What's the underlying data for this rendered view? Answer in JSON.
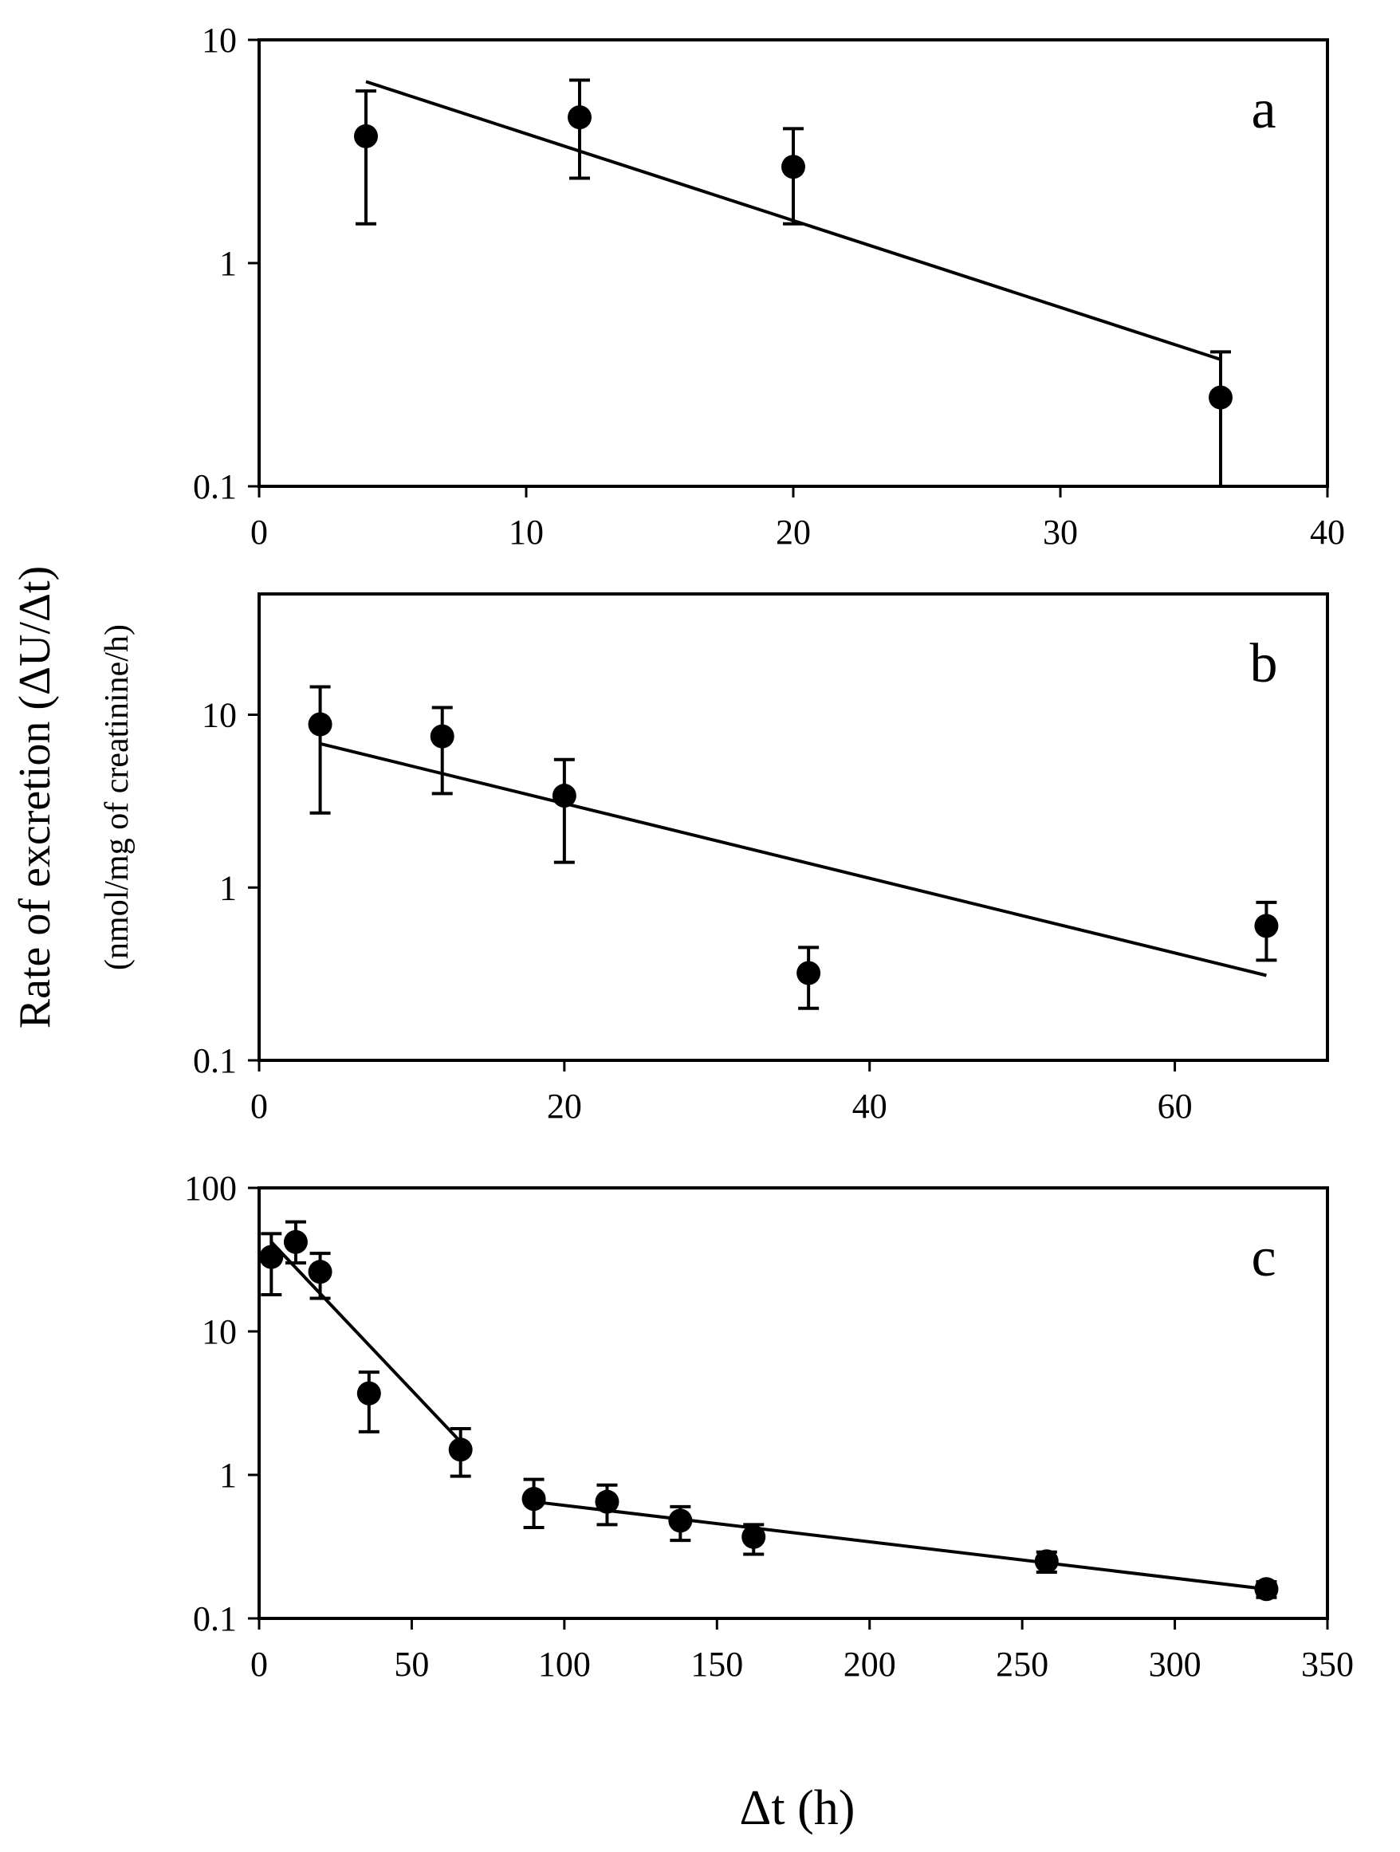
{
  "figure": {
    "ylabel": "Rate of excretion (ΔU/Δt)",
    "ylabel_units": "(nmol/mg of creatinine/h)",
    "xlabel": "Δt (h)"
  },
  "chart_data": [
    {
      "type": "scatter",
      "panel": "a",
      "yscale": "log",
      "xlim": [
        0,
        40
      ],
      "ylim": [
        0.1,
        10
      ],
      "xticks": [
        0,
        10,
        20,
        30,
        40
      ],
      "yticks": [
        0.1,
        1,
        10
      ],
      "xtick_labels": [
        "0",
        "10",
        "20",
        "30",
        "40"
      ],
      "ytick_labels": [
        "0.1",
        "1",
        "10"
      ],
      "series": [
        {
          "name": "data",
          "x": [
            4,
            12,
            20,
            36
          ],
          "y": [
            3.7,
            4.5,
            2.7,
            0.25
          ],
          "err_low": [
            1.5,
            2.4,
            1.5,
            0.1
          ],
          "err_high": [
            5.9,
            6.6,
            4.0,
            0.4
          ]
        }
      ],
      "fits": [
        {
          "x": [
            4,
            36
          ],
          "y": [
            6.5,
            0.37
          ]
        }
      ]
    },
    {
      "type": "scatter",
      "panel": "b",
      "yscale": "log",
      "xlim": [
        0,
        70
      ],
      "ylim": [
        0.1,
        50
      ],
      "xticks": [
        0,
        20,
        40,
        60
      ],
      "yticks": [
        0.1,
        1,
        10
      ],
      "xtick_labels": [
        "0",
        "20",
        "40",
        "60"
      ],
      "ytick_labels": [
        "0.1",
        "1",
        "10"
      ],
      "series": [
        {
          "name": "data",
          "x": [
            4,
            12,
            20,
            36,
            66
          ],
          "y": [
            8.8,
            7.5,
            3.4,
            0.32,
            0.6
          ],
          "err_low": [
            2.7,
            3.5,
            1.4,
            0.2,
            0.38
          ],
          "err_high": [
            14.5,
            11.0,
            5.5,
            0.45,
            0.82
          ]
        }
      ],
      "fits": [
        {
          "x": [
            4,
            66
          ],
          "y": [
            6.8,
            0.31
          ]
        }
      ]
    },
    {
      "type": "scatter",
      "panel": "c",
      "yscale": "log",
      "xlim": [
        0,
        350
      ],
      "ylim": [
        0.1,
        100
      ],
      "xticks": [
        0,
        50,
        100,
        150,
        200,
        250,
        300,
        350
      ],
      "yticks": [
        0.1,
        1,
        10,
        100
      ],
      "xtick_labels": [
        "0",
        "50",
        "100",
        "150",
        "200",
        "250",
        "300",
        "350"
      ],
      "ytick_labels": [
        "0.1",
        "1",
        "10",
        "100"
      ],
      "series": [
        {
          "name": "data",
          "x": [
            4,
            12,
            20,
            36,
            66,
            90,
            114,
            138,
            162,
            258,
            330
          ],
          "y": [
            33,
            42,
            26,
            3.7,
            1.5,
            0.68,
            0.65,
            0.48,
            0.37,
            0.25,
            0.16
          ],
          "err_low": [
            18,
            30,
            17,
            2.0,
            0.98,
            0.43,
            0.45,
            0.35,
            0.28,
            0.21,
            0.14
          ],
          "err_high": [
            48,
            58,
            35,
            5.2,
            2.1,
            0.93,
            0.85,
            0.6,
            0.45,
            0.29,
            0.18
          ]
        }
      ],
      "fits": [
        {
          "x": [
            4,
            66
          ],
          "y": [
            42,
            1.7
          ]
        },
        {
          "x": [
            90,
            330
          ],
          "y": [
            0.65,
            0.16
          ]
        }
      ]
    }
  ]
}
